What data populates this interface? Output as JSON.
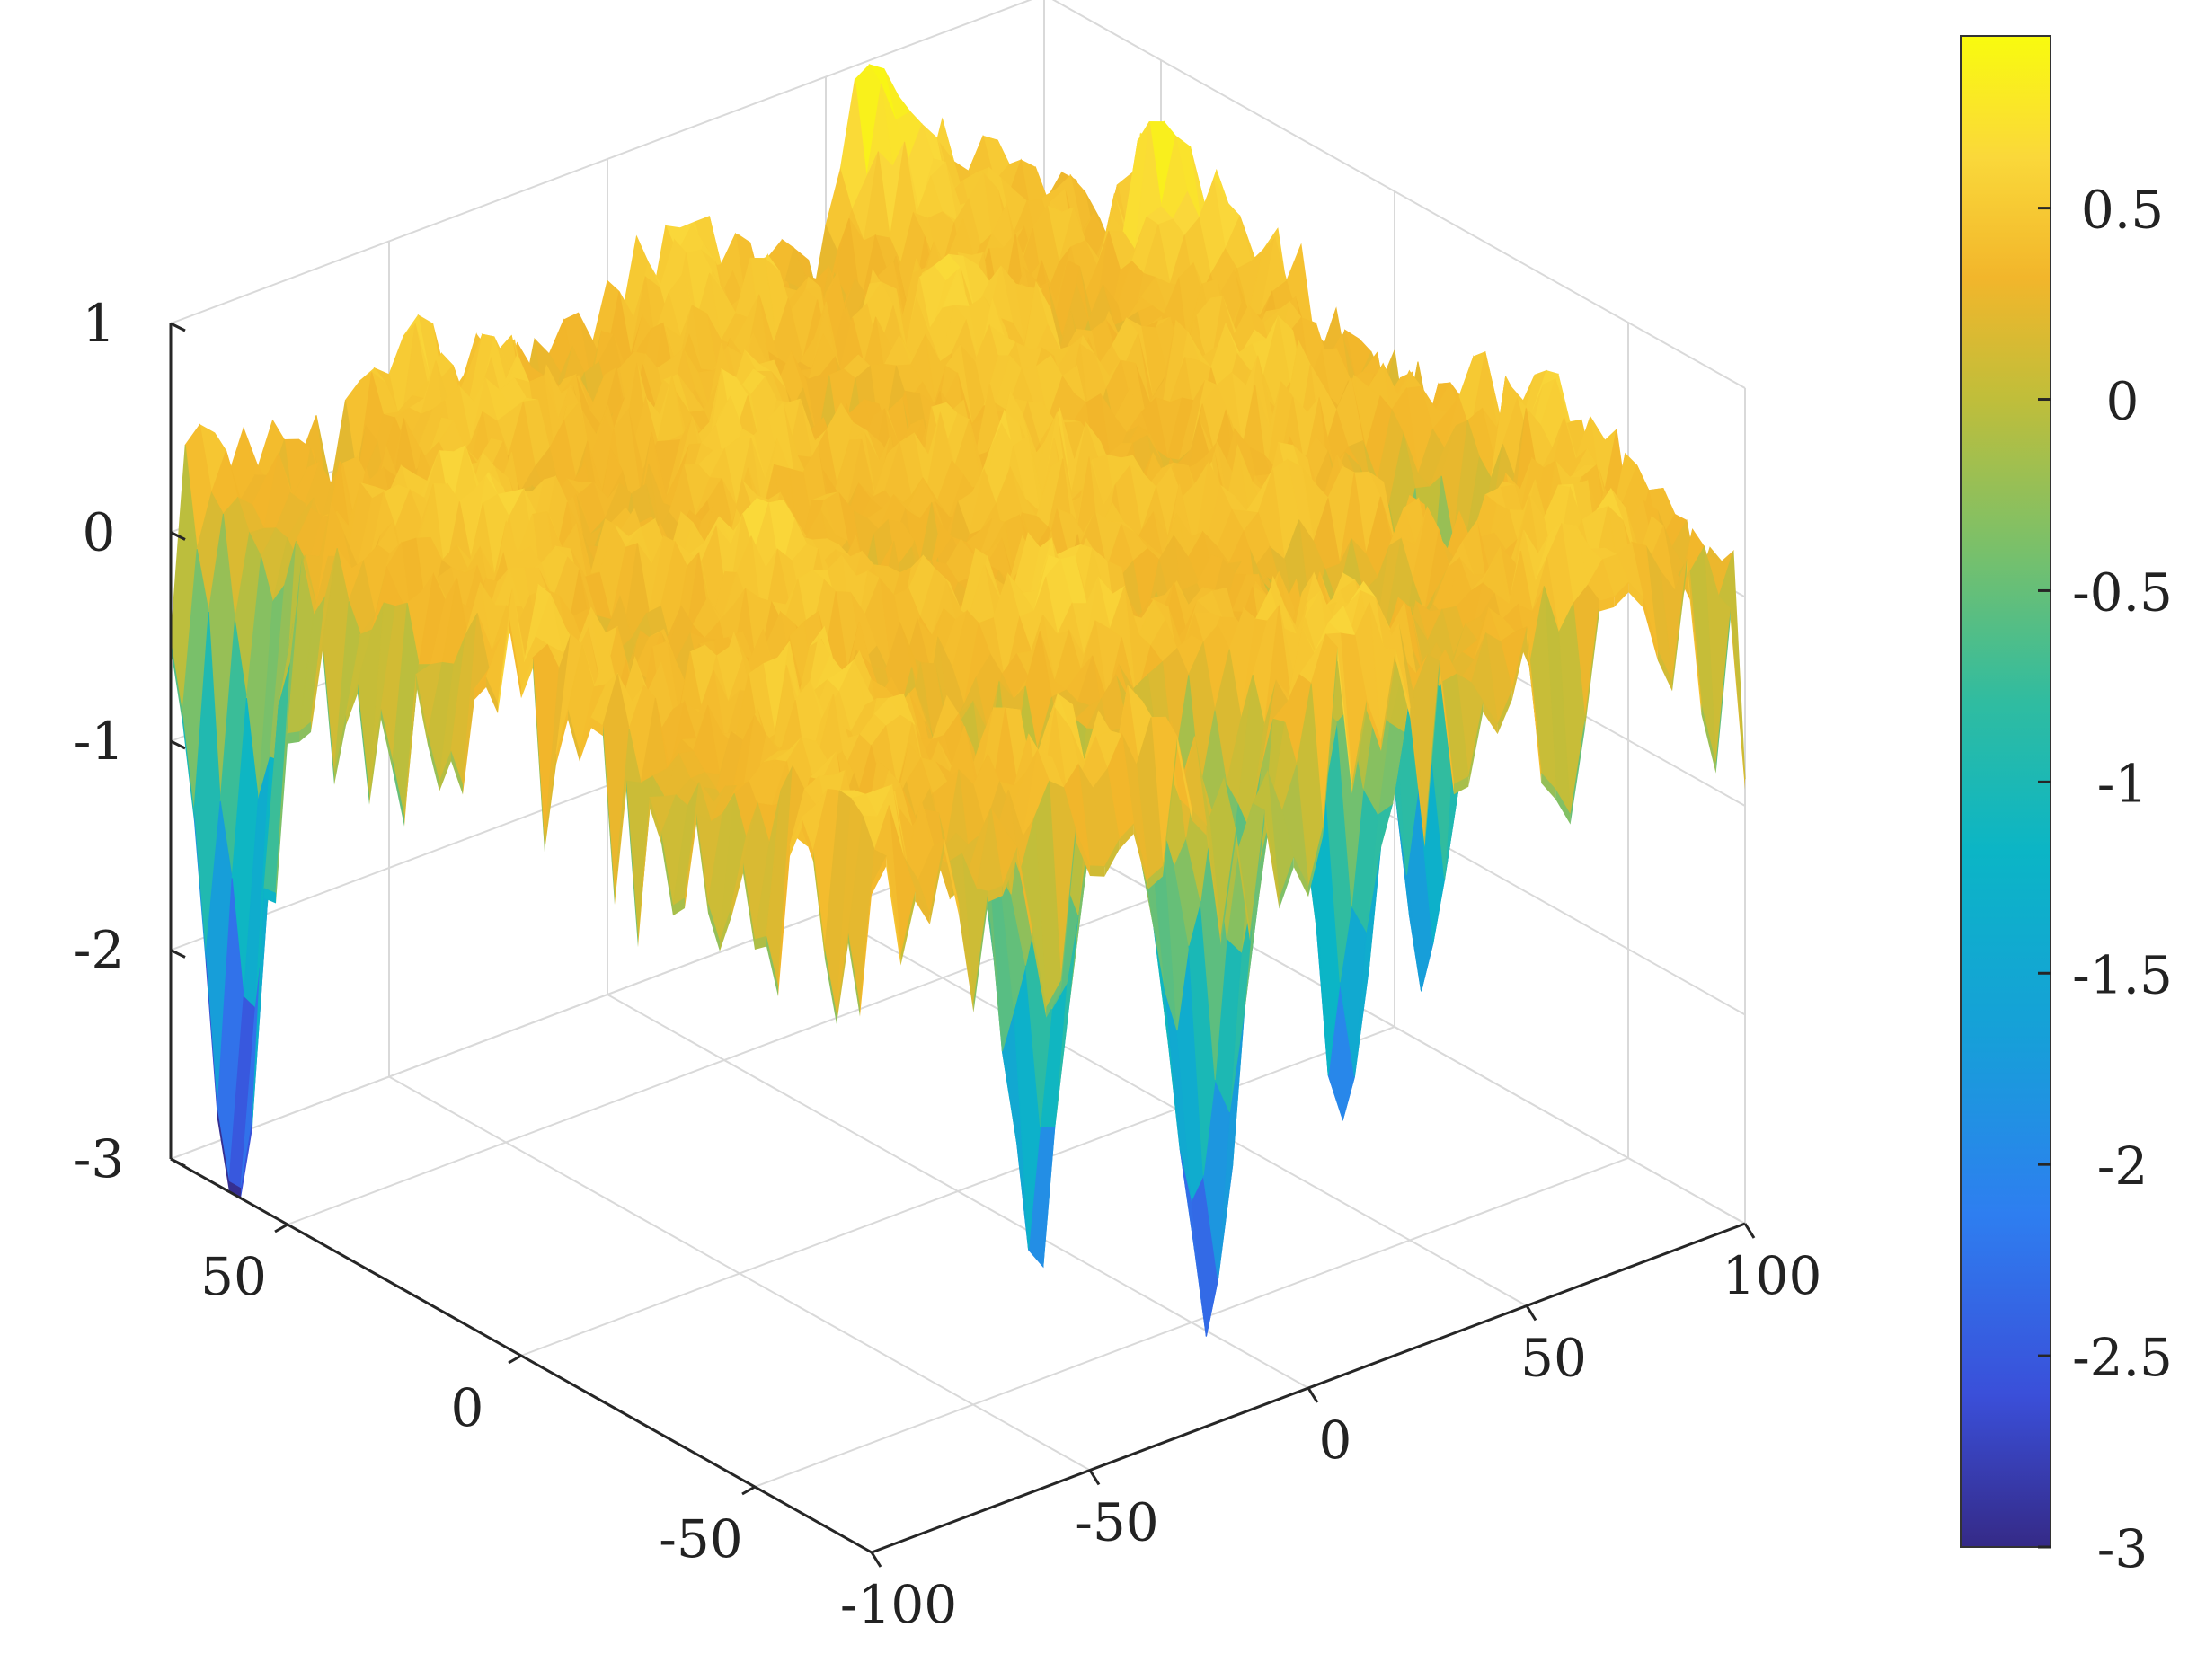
{
  "chart_data": {
    "type": "surface",
    "title": "",
    "xlabel": "",
    "ylabel": "",
    "zlabel": "",
    "grid": true,
    "xlim": [
      -100,
      100
    ],
    "ylim": [
      -75,
      75
    ],
    "zlim": [
      -3,
      1
    ],
    "x_ticks": [
      "-100",
      "-50",
      "0",
      "50",
      "100"
    ],
    "y_ticks": [
      "-50",
      "0",
      "50"
    ],
    "z_ticks": [
      "-3",
      "-2",
      "-1",
      "0",
      "1"
    ],
    "surface_description_values": {
      "mean_level": 0.25,
      "typical_range": [
        -0.5,
        0.9
      ],
      "deep_troughs": [
        {
          "x": -100,
          "y": 62,
          "z": -2.8
        },
        {
          "x": -38,
          "y": -52,
          "z": -2.3
        },
        {
          "x": -10,
          "y": -62,
          "z": -2.6
        },
        {
          "x": 40,
          "y": -45,
          "z": -2.5
        },
        {
          "x": 78,
          "y": -28,
          "z": -2.1
        }
      ],
      "highest_peaks": [
        {
          "x": 60,
          "y": 75,
          "z": 0.95
        },
        {
          "x": 90,
          "y": 40,
          "z": 0.85
        }
      ]
    },
    "colorbar": {
      "colormap": "parula",
      "range": [
        -3,
        0.95
      ],
      "ticks": [
        "0.5",
        "0",
        "-0.5",
        "-1",
        "-1.5",
        "-2",
        "-2.5",
        "-3"
      ],
      "colors": [
        "#352a87",
        "#3a4fd9",
        "#2e7ef0",
        "#16a0d8",
        "#0bb5c6",
        "#30bca0",
        "#79c06a",
        "#c0be3a",
        "#f2b62b",
        "#fad83a",
        "#f9fb0e"
      ]
    }
  }
}
